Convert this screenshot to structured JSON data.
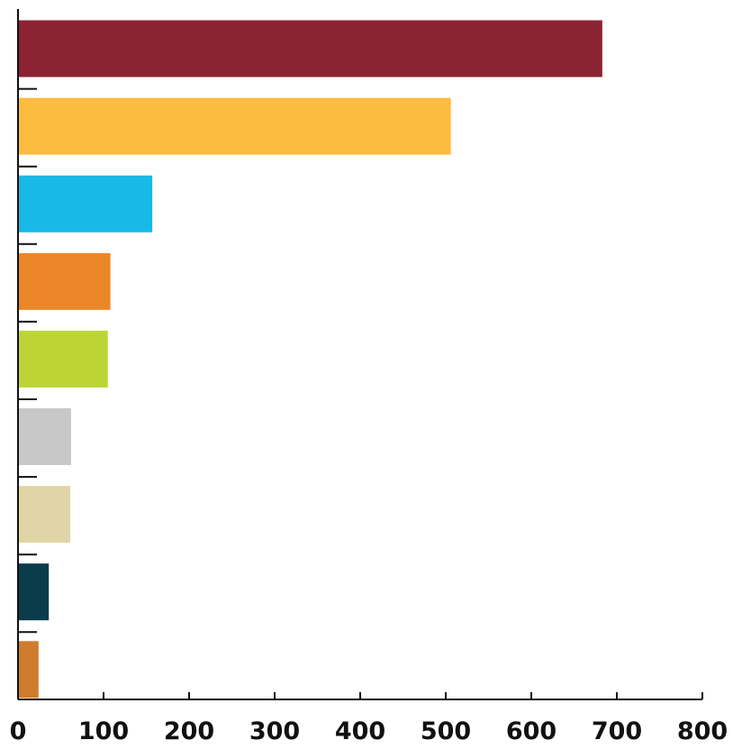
{
  "chart_data": {
    "type": "bar",
    "orientation": "horizontal",
    "title": "",
    "xlabel": "",
    "ylabel": "",
    "xlim": [
      0,
      800
    ],
    "x_ticks": [
      0,
      100,
      200,
      300,
      400,
      500,
      600,
      700,
      800
    ],
    "x_tick_labels": [
      "0",
      "100",
      "200",
      "300",
      "400",
      "500",
      "600",
      "700",
      "800"
    ],
    "grid": false,
    "legend": "none",
    "bars": [
      {
        "value": 683,
        "color": "#8B2332"
      },
      {
        "value": 506,
        "color": "#FDBB40"
      },
      {
        "value": 157,
        "color": "#18B9E7"
      },
      {
        "value": 108,
        "color": "#EB8629"
      },
      {
        "value": 105,
        "color": "#BDD534"
      },
      {
        "value": 62,
        "color": "#C8C8C8"
      },
      {
        "value": 61,
        "color": "#E0D5A7"
      },
      {
        "value": 36,
        "color": "#0B3C4C"
      },
      {
        "value": 24,
        "color": "#CF7C2C"
      }
    ]
  }
}
